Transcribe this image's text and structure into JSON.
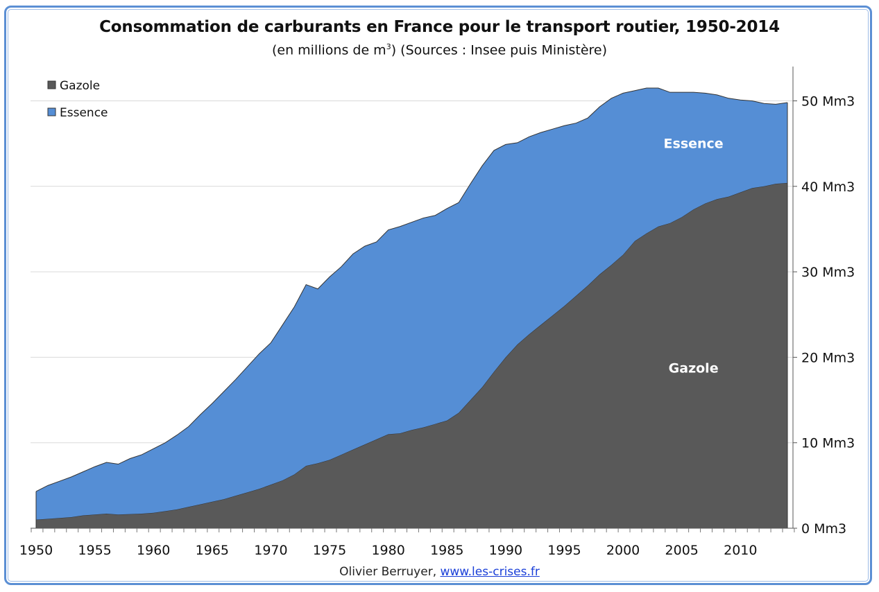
{
  "title": "Consommation de carburants en France pour le transport routier, 1950-2014",
  "subtitle_pre": "(en millions de m",
  "subtitle_sup": "3",
  "subtitle_post": ") (Sources : Insee puis Ministère)",
  "credit_author": "Olivier Berruyer,",
  "credit_link": "www.les-crises.fr",
  "colors": {
    "gazole": "#595959",
    "essence": "#558ed5",
    "frame": "#5b8fd4",
    "grid": "#d9d9d9"
  },
  "chart_data": {
    "type": "area",
    "stacked": true,
    "x": [
      1950,
      1951,
      1952,
      1953,
      1954,
      1955,
      1956,
      1957,
      1958,
      1959,
      1960,
      1961,
      1962,
      1963,
      1964,
      1965,
      1966,
      1967,
      1968,
      1969,
      1970,
      1971,
      1972,
      1973,
      1974,
      1975,
      1976,
      1977,
      1978,
      1979,
      1980,
      1981,
      1982,
      1983,
      1984,
      1985,
      1986,
      1987,
      1988,
      1989,
      1990,
      1991,
      1992,
      1993,
      1994,
      1995,
      1996,
      1997,
      1998,
      1999,
      2000,
      2001,
      2002,
      2003,
      2004,
      2005,
      2006,
      2007,
      2008,
      2009,
      2010,
      2011,
      2012,
      2013,
      2014
    ],
    "series": [
      {
        "name": "Gazole",
        "color": "#595959",
        "values": [
          1.0,
          1.1,
          1.2,
          1.3,
          1.5,
          1.6,
          1.7,
          1.6,
          1.65,
          1.7,
          1.8,
          2.0,
          2.2,
          2.5,
          2.8,
          3.1,
          3.4,
          3.8,
          4.2,
          4.6,
          5.1,
          5.6,
          6.3,
          7.3,
          7.6,
          8.0,
          8.6,
          9.2,
          9.8,
          10.4,
          11.0,
          11.1,
          11.5,
          11.8,
          12.2,
          12.6,
          13.5,
          15.0,
          16.5,
          18.3,
          20.0,
          21.5,
          22.7,
          23.8,
          24.9,
          26.0,
          27.2,
          28.4,
          29.7,
          30.8,
          32.0,
          33.6,
          34.5,
          35.3,
          35.7,
          36.4,
          37.3,
          38.0,
          38.5,
          38.8,
          39.3,
          39.8,
          40.0,
          40.3,
          40.4
        ]
      },
      {
        "name": "Essence",
        "color": "#558ed5",
        "values": [
          3.3,
          3.9,
          4.3,
          4.7,
          5.1,
          5.6,
          6.0,
          5.9,
          6.5,
          6.9,
          7.5,
          8.0,
          8.7,
          9.4,
          10.5,
          11.5,
          12.6,
          13.6,
          14.7,
          15.8,
          16.6,
          18.2,
          19.6,
          21.2,
          20.4,
          21.4,
          22.0,
          22.9,
          23.2,
          23.1,
          23.9,
          24.2,
          24.3,
          24.5,
          24.4,
          24.8,
          24.6,
          25.3,
          25.9,
          25.9,
          24.9,
          23.6,
          23.1,
          22.5,
          21.8,
          21.1,
          20.2,
          19.6,
          19.6,
          19.5,
          18.9,
          17.6,
          17.0,
          16.2,
          15.3,
          14.6,
          13.7,
          12.9,
          12.2,
          11.5,
          10.8,
          10.2,
          9.7,
          9.3,
          9.4
        ]
      }
    ],
    "area_labels": [
      {
        "text": "Essence",
        "x": 2006.0,
        "y": 44.5
      },
      {
        "text": "Gazole",
        "x": 2006.0,
        "y": 18.2
      }
    ],
    "legend": [
      {
        "label": "Gazole",
        "color": "#595959"
      },
      {
        "label": "Essence",
        "color": "#558ed5"
      }
    ],
    "legend_position": "top-left",
    "x_ticks": [
      1950,
      1955,
      1960,
      1965,
      1970,
      1975,
      1980,
      1985,
      1990,
      1995,
      2000,
      2005,
      2010
    ],
    "x_range": [
      1950,
      2014
    ],
    "y_ticks": [
      0,
      10,
      20,
      30,
      40,
      50
    ],
    "y_tick_labels": [
      "0 Mm3",
      "10 Mm3",
      "20 Mm3",
      "30 Mm3",
      "40 Mm3",
      "50 Mm3"
    ],
    "y_axis_side": "right",
    "ylim": [
      0,
      54
    ],
    "grid": "horizontal"
  }
}
